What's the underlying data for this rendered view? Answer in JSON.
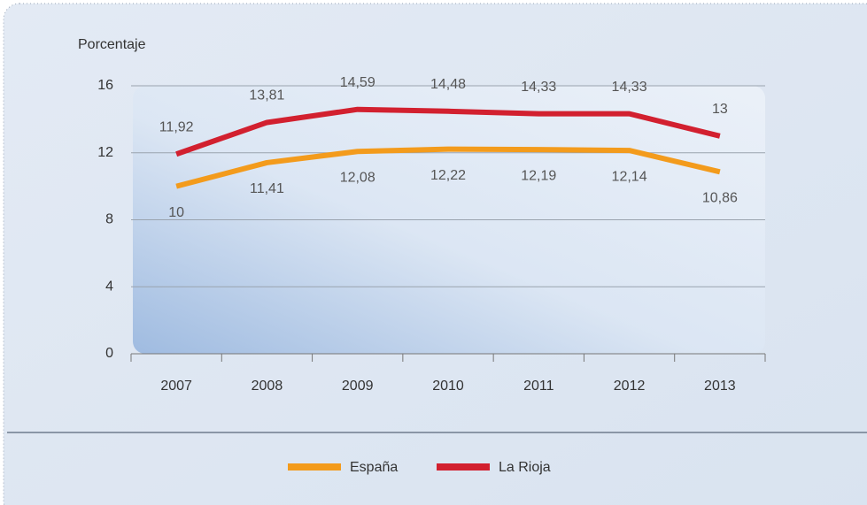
{
  "chart_data": {
    "type": "line",
    "y_label": "Porcentaje",
    "categories": [
      "2007",
      "2008",
      "2009",
      "2010",
      "2011",
      "2012",
      "2013"
    ],
    "series": [
      {
        "name": "España",
        "color": "#f39b1c",
        "values": [
          10,
          11.41,
          12.08,
          12.22,
          12.19,
          12.14,
          10.86
        ],
        "value_labels": [
          "10",
          "11,41",
          "12,08",
          "12,22",
          "12,19",
          "12,14",
          "10,86"
        ]
      },
      {
        "name": "La Rioja",
        "color": "#d2202f",
        "values": [
          11.92,
          13.81,
          14.59,
          14.48,
          14.33,
          14.33,
          13
        ],
        "value_labels": [
          "11,92",
          "13,81",
          "14,59",
          "14,48",
          "14,33",
          "14,33",
          "13"
        ]
      }
    ],
    "ylim": [
      0,
      16
    ],
    "yticks": [
      0,
      4,
      8,
      12,
      16
    ],
    "grid": true
  }
}
